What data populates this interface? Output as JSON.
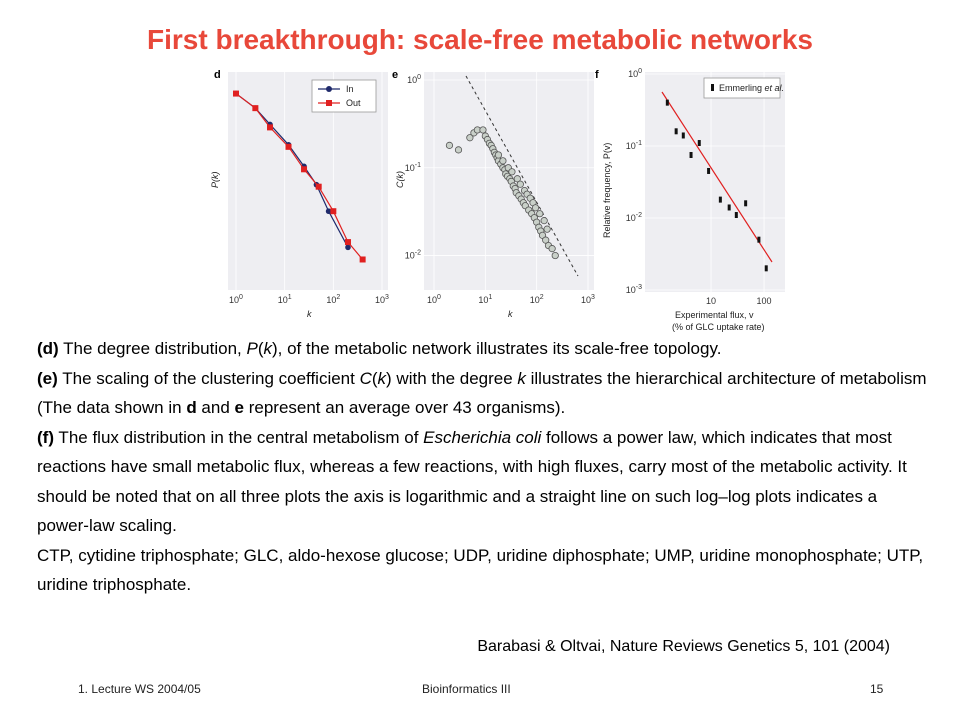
{
  "slide": {
    "title": "First breakthrough: scale-free metabolic networks",
    "reference": "Barabasi & Oltvai, Nature Reviews Genetics 5, 101 (2004)",
    "footer": {
      "left": "1. Lecture WS 2004/05",
      "center": "Bioinformatics III",
      "right": "15"
    },
    "caption": {
      "d_label": "(d)",
      "d_text_1": " The degree distribution, ",
      "d_pk": "P",
      "d_text_2": "(",
      "d_k": "k",
      "d_text_3": "), of the metabolic network illustrates its scale-free topology.",
      "e_label_open": "(",
      "e_label": "e",
      "e_label_close": ")",
      "e_text_1": " The scaling of the clustering coefficient ",
      "e_ck": "C",
      "e_text_2": "(",
      "e_k": "k",
      "e_text_3": ") with the degree ",
      "e_k2": "k",
      "e_text_4": " illustrates the hierarchical architecture of metabolism (The data shown in ",
      "e_d": "d",
      "e_text_5": " and ",
      "e_e": "e",
      "e_text_6": " represent an average over 43 organisms).",
      "f_open": "(",
      "f_label": "f",
      "f_close": ")",
      "f_text_1": " The flux distribution in the central metabolism of ",
      "f_ecoli": "Escherichia coli",
      "f_text_2": " follows a power law, which indicates that most reactions have small metabolic flux, whereas a few reactions, with high fluxes, carry most of the metabolic activity. It should be noted that on all three plots the axis is logarithmic and a straight line on such log–log plots indicates a power-law scaling.",
      "abbrev": "CTP, cytidine triphosphate; GLC, aldo-hexose glucose; UDP, uridine diphosphate; UMP, uridine monophosphate; UTP, uridine triphosphate."
    }
  },
  "chart_data": [
    {
      "type": "line",
      "panel": "d",
      "xlabel": "k",
      "ylabel": "P(k)",
      "log_x": true,
      "log_y": true,
      "xticks": [
        "10^0",
        "10^1",
        "10^2",
        "10^3"
      ],
      "legend": "top-right",
      "series": [
        {
          "name": "In",
          "color": "#1f2a6b",
          "x": [
            1,
            2.5,
            5,
            12,
            25,
            45,
            80,
            200
          ],
          "y": [
            0.7,
            0.55,
            0.42,
            0.3,
            0.21,
            0.155,
            0.1,
            0.055
          ]
        },
        {
          "name": "Out",
          "color": "#e02020",
          "x": [
            1,
            2.5,
            5,
            12,
            25,
            50,
            100,
            200,
            400
          ],
          "y": [
            0.7,
            0.55,
            0.4,
            0.29,
            0.2,
            0.15,
            0.1,
            0.06,
            0.045
          ]
        }
      ]
    },
    {
      "type": "scatter",
      "panel": "e",
      "xlabel": "k",
      "ylabel": "C(k)",
      "log_x": true,
      "log_y": true,
      "xticks": [
        "10^0",
        "10^1",
        "10^2",
        "10^3"
      ],
      "yticks": [
        "10^0",
        "10^-1",
        "10^-2"
      ],
      "reference_line": "dashed",
      "points": [
        [
          2,
          0.18
        ],
        [
          3,
          0.16
        ],
        [
          5,
          0.22
        ],
        [
          6,
          0.25
        ],
        [
          7,
          0.27
        ],
        [
          9,
          0.27
        ],
        [
          10,
          0.23
        ],
        [
          11,
          0.21
        ],
        [
          12,
          0.19
        ],
        [
          13,
          0.18
        ],
        [
          14,
          0.165
        ],
        [
          15,
          0.15
        ],
        [
          16,
          0.14
        ],
        [
          17,
          0.13
        ],
        [
          18,
          0.12
        ],
        [
          20,
          0.11
        ],
        [
          22,
          0.1
        ],
        [
          24,
          0.095
        ],
        [
          25,
          0.085
        ],
        [
          27,
          0.08
        ],
        [
          30,
          0.075
        ],
        [
          32,
          0.07
        ],
        [
          35,
          0.062
        ],
        [
          38,
          0.058
        ],
        [
          40,
          0.052
        ],
        [
          45,
          0.048
        ],
        [
          50,
          0.044
        ],
        [
          55,
          0.04
        ],
        [
          60,
          0.037
        ],
        [
          70,
          0.033
        ],
        [
          80,
          0.03
        ],
        [
          90,
          0.027
        ],
        [
          100,
          0.024
        ],
        [
          110,
          0.021
        ],
        [
          120,
          0.019
        ],
        [
          130,
          0.017
        ],
        [
          150,
          0.015
        ],
        [
          170,
          0.013
        ],
        [
          200,
          0.012
        ],
        [
          230,
          0.01
        ],
        [
          18,
          0.14
        ],
        [
          22,
          0.12
        ],
        [
          28,
          0.1
        ],
        [
          33,
          0.09
        ],
        [
          42,
          0.075
        ],
        [
          48,
          0.065
        ],
        [
          58,
          0.055
        ],
        [
          65,
          0.05
        ],
        [
          75,
          0.045
        ],
        [
          85,
          0.04
        ],
        [
          95,
          0.035
        ],
        [
          115,
          0.03
        ],
        [
          140,
          0.025
        ],
        [
          160,
          0.02
        ]
      ]
    },
    {
      "type": "scatter",
      "panel": "f",
      "xlabel": "Experimental flux, v",
      "xlabel2": "(% of GLC uptake rate)",
      "ylabel": "Relative frequency, P(v)",
      "log_x": true,
      "log_y": true,
      "xticks": [
        "10",
        "100"
      ],
      "yticks": [
        "10^0",
        "10^-1",
        "10^-2",
        "10^-3"
      ],
      "legend_prefix": "Emmerling ",
      "legend_italic": "et al.",
      "fit_line": "red",
      "points": [
        [
          1.5,
          0.4
        ],
        [
          2.2,
          0.16
        ],
        [
          3,
          0.14
        ],
        [
          4.2,
          0.075
        ],
        [
          6,
          0.11
        ],
        [
          9,
          0.045
        ],
        [
          15,
          0.018
        ],
        [
          22,
          0.014
        ],
        [
          30,
          0.011
        ],
        [
          45,
          0.016
        ],
        [
          80,
          0.005
        ],
        [
          110,
          0.002
        ]
      ]
    }
  ]
}
